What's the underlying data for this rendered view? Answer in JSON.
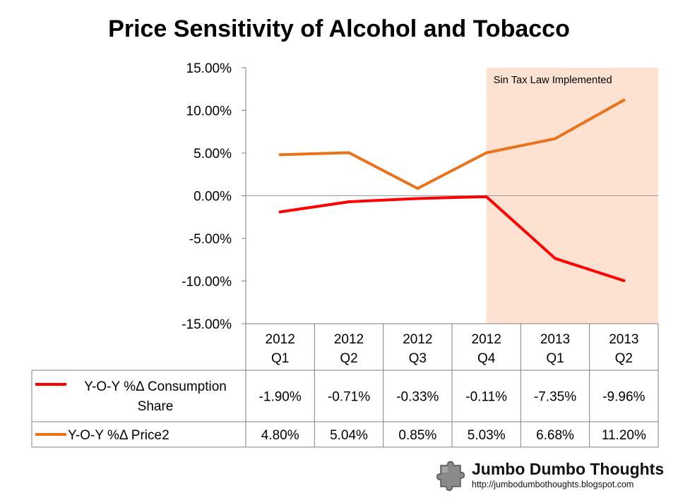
{
  "chart_data": {
    "type": "line",
    "title": "Price Sensitivity of Alcohol and Tobacco",
    "categories": [
      "2012 Q1",
      "2012 Q2",
      "2012 Q3",
      "2012 Q4",
      "2013 Q1",
      "2013 Q2"
    ],
    "category_lines": [
      [
        "2012",
        "Q1"
      ],
      [
        "2012",
        "Q2"
      ],
      [
        "2012",
        "Q3"
      ],
      [
        "2012",
        "Q4"
      ],
      [
        "2013",
        "Q1"
      ],
      [
        "2013",
        "Q2"
      ]
    ],
    "ylim": [
      -15,
      15
    ],
    "y_ticks": [
      15,
      10,
      5,
      0,
      -5,
      -10,
      -15
    ],
    "y_tick_labels": [
      "15.00%",
      "10.00%",
      "5.00%",
      "0.00%",
      "-5.00%",
      "-10.00%",
      "-15.00%"
    ],
    "series": [
      {
        "name": "Y-O-Y %Δ Consumption Share",
        "name_lines": [
          "Y-O-Y %Δ Consumption",
          "Share"
        ],
        "color": "#ff0000",
        "values": [
          -1.9,
          -0.71,
          -0.33,
          -0.11,
          -7.35,
          -9.96
        ],
        "labels": [
          "-1.90%",
          "-0.71%",
          "-0.33%",
          "-0.11%",
          "-7.35%",
          "-9.96%"
        ]
      },
      {
        "name": "Y-O-Y %Δ Price2",
        "name_lines": [
          "Y-O-Y %Δ Price2"
        ],
        "color": "#e8731b",
        "values": [
          4.8,
          5.04,
          0.85,
          5.03,
          6.68,
          11.2
        ],
        "labels": [
          "4.80%",
          "5.04%",
          "0.85%",
          "5.03%",
          "6.68%",
          "11.20%"
        ]
      }
    ],
    "annotation": {
      "text": "Sin Tax Law Implemented",
      "from_category": "2012 Q4",
      "color": "#fde2d2"
    },
    "grid": false,
    "legend": "data-table"
  },
  "logo": {
    "name": "Jumbo Dumbo Thoughts",
    "url": "http://jumbodumbothoughts.blogspot.com"
  }
}
